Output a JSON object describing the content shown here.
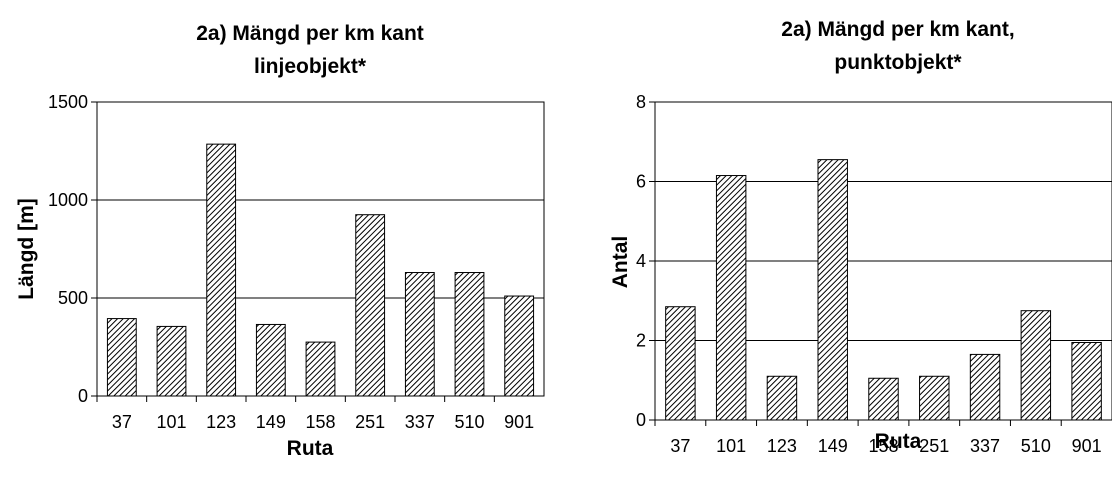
{
  "chart_data": [
    {
      "type": "bar",
      "title": [
        "2a) Mängd per km kant",
        "linjeobjekt*"
      ],
      "xlabel": "Ruta",
      "ylabel": "Längd [m]",
      "categories": [
        "37",
        "101",
        "123",
        "149",
        "158",
        "251",
        "337",
        "510",
        "901"
      ],
      "values": [
        395,
        355,
        1285,
        365,
        275,
        925,
        630,
        630,
        510
      ],
      "ylim": [
        0,
        1500
      ],
      "yticks": [
        0,
        500,
        1000,
        1500
      ],
      "grid": "horizontal",
      "bar_fill": "diagonal-hatch"
    },
    {
      "type": "bar",
      "title": [
        "2a) Mängd per km kant,",
        "punktobjekt*"
      ],
      "xlabel": "Ruta",
      "ylabel": "Antal",
      "categories": [
        "37",
        "101",
        "123",
        "149",
        "158",
        "251",
        "337",
        "510",
        "901"
      ],
      "values": [
        2.85,
        6.15,
        1.1,
        6.55,
        1.05,
        1.1,
        1.65,
        2.75,
        1.95
      ],
      "ylim": [
        0,
        8
      ],
      "yticks": [
        0,
        2,
        4,
        6,
        8
      ],
      "grid": "horizontal",
      "bar_fill": "diagonal-hatch"
    }
  ]
}
